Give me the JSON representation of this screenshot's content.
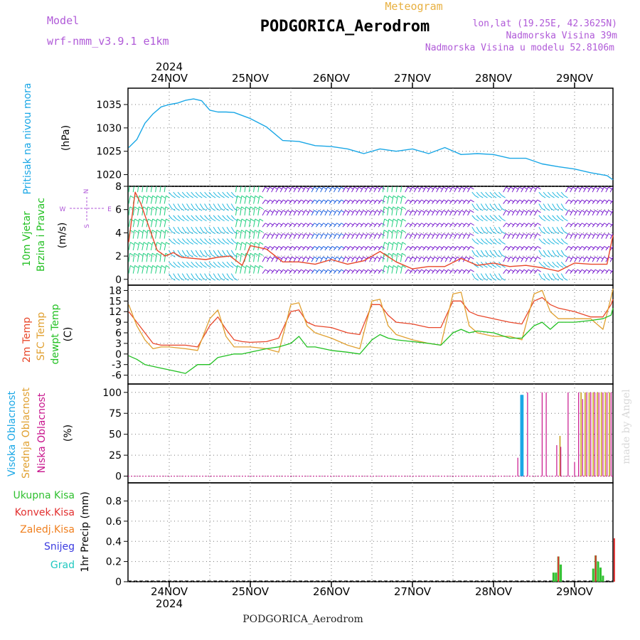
{
  "header": {
    "model_label": "Model",
    "model_name": "wrf-nmm_v3.9.1 e1km",
    "meteogram_label": "Meteogram",
    "station": "PODGORICA_Aerodrom",
    "lonlat": "lon,lat (19.25E, 42.3625N)",
    "elevation": "Nadmorska Visina 39m",
    "model_elevation": "Nadmorska Visina u modelu 52.8106m",
    "footer_station": "PODGORICA_Aerodrom",
    "watermark": "made by Angel"
  },
  "time_axis": {
    "year": "2024",
    "day_labels": [
      "24NOV",
      "25NOV",
      "26NOV",
      "27NOV",
      "28NOV",
      "29NOV"
    ]
  },
  "panels": {
    "pressure": {
      "title": "Pritisak na nivou mora",
      "unit": "(hPa)"
    },
    "wind": {
      "title_line1": "10m Vjetar",
      "title_line2": "Brzina i Pravac",
      "unit": "(m/s)",
      "compass_n": "N",
      "compass_s": "S",
      "compass_e": "E",
      "compass_w": "W"
    },
    "temp": {
      "label_2m": "2m Temp",
      "label_sfc": "SFC Temp",
      "label_dew": "dewpt Temp",
      "unit": "(C)"
    },
    "cloud": {
      "label_high": "Visoka Oblacnost",
      "label_mid": "Srednja Oblacnost",
      "label_low": "Niska Oblacnost",
      "unit": "(%)"
    },
    "precip": {
      "label_total": "Ukupna Kisa",
      "label_conv": "Konvek.Kisa",
      "label_frozen": "Zaledj.Kisa",
      "label_snow": "Snijeg",
      "label_grad": "Grad",
      "unit": "1hr Precip (mm)"
    }
  },
  "colors": {
    "pressure": "#1aa7e6",
    "wind_speed": "#e8472a",
    "temp_2m": "#e8472a",
    "temp_sfc": "#e0a030",
    "temp_dew": "#22c022",
    "cloud_high": "#1aa7e6",
    "cloud_mid": "#c8a020",
    "cloud_low": "#c8148c",
    "precip_total": "#30c030",
    "precip_conv": "#e23030",
    "precip_frozen": "#f08020",
    "precip_snow": "#3a3ae0",
    "precip_grad": "#20c8c0",
    "barb_purple": "#7a1ed0",
    "barb_blue": "#2060e0",
    "barb_cyan": "#20b8e0",
    "barb_green": "#20d080",
    "model_text": "#b05ad8",
    "orange_title": "#e8b040"
  },
  "chart_data": [
    {
      "type": "line",
      "name": "pressure",
      "x_unit": "days from 24NOV 00UTC",
      "x": [
        -0.5,
        -0.4,
        -0.3,
        -0.2,
        -0.1,
        0.0,
        0.1,
        0.2,
        0.3,
        0.4,
        0.5,
        0.6,
        0.7,
        0.8,
        1.0,
        1.2,
        1.4,
        1.6,
        1.8,
        2.0,
        2.2,
        2.4,
        2.6,
        2.8,
        3.0,
        3.2,
        3.4,
        3.6,
        3.8,
        4.0,
        4.2,
        4.4,
        4.6,
        4.8,
        5.0,
        5.2,
        5.4,
        5.5
      ],
      "values": [
        1025.8,
        1027.5,
        1031.0,
        1033.0,
        1034.5,
        1035.0,
        1035.3,
        1035.9,
        1036.2,
        1035.8,
        1033.8,
        1033.4,
        1033.4,
        1033.3,
        1032.0,
        1030.2,
        1027.3,
        1027.1,
        1026.2,
        1026.0,
        1025.5,
        1024.5,
        1025.5,
        1025.0,
        1025.5,
        1024.5,
        1025.8,
        1024.3,
        1024.5,
        1024.3,
        1023.5,
        1023.5,
        1022.3,
        1021.7,
        1021.2,
        1020.4,
        1019.8,
        1018.9
      ],
      "ylim": [
        1017.5,
        1038.5
      ],
      "yticks": [
        1020,
        1025,
        1030,
        1035
      ]
    },
    {
      "type": "line",
      "name": "wind_speed",
      "x": [
        -0.5,
        -0.42,
        -0.35,
        -0.25,
        -0.15,
        -0.05,
        0.05,
        0.15,
        0.3,
        0.45,
        0.6,
        0.75,
        0.9,
        1.0,
        1.2,
        1.4,
        1.6,
        1.8,
        2.0,
        2.2,
        2.4,
        2.6,
        2.8,
        3.0,
        3.2,
        3.4,
        3.6,
        3.8,
        4.0,
        4.2,
        4.4,
        4.6,
        4.8,
        5.0,
        5.2,
        5.4,
        5.5
      ],
      "values": [
        3.2,
        7.5,
        6.5,
        4.5,
        2.5,
        2.0,
        2.3,
        1.9,
        1.8,
        1.7,
        1.9,
        2.0,
        1.2,
        2.9,
        2.6,
        1.5,
        1.5,
        1.3,
        1.7,
        1.3,
        1.6,
        2.4,
        1.5,
        0.9,
        1.1,
        1.1,
        1.8,
        1.2,
        1.4,
        1.1,
        1.2,
        1.0,
        0.7,
        1.4,
        1.3,
        1.3,
        3.8
      ],
      "ylim": [
        -0.5,
        8
      ],
      "yticks": [
        0,
        2,
        4,
        6,
        8
      ]
    },
    {
      "type": "line",
      "name": "temperature",
      "x": [
        -0.5,
        -0.4,
        -0.3,
        -0.2,
        -0.1,
        0.0,
        0.2,
        0.35,
        0.5,
        0.6,
        0.7,
        0.8,
        0.9,
        1.0,
        1.2,
        1.35,
        1.5,
        1.6,
        1.7,
        1.8,
        2.0,
        2.2,
        2.35,
        2.5,
        2.6,
        2.7,
        2.8,
        3.0,
        3.2,
        3.35,
        3.5,
        3.6,
        3.7,
        3.8,
        4.0,
        4.2,
        4.35,
        4.5,
        4.6,
        4.7,
        4.8,
        5.0,
        5.2,
        5.35,
        5.45,
        5.5
      ],
      "series": [
        {
          "name": "2m Temp",
          "values": [
            12,
            9,
            6,
            3,
            2.5,
            2.5,
            2.5,
            2,
            8,
            10.5,
            7,
            4,
            3.5,
            3.3,
            3.5,
            4.5,
            12,
            12.5,
            9,
            8,
            7.5,
            6,
            5.5,
            14,
            14,
            11,
            9,
            8.5,
            7.5,
            7.5,
            15,
            15,
            12,
            11,
            10,
            9,
            8.5,
            15,
            16,
            14,
            13,
            12,
            10.5,
            10.5,
            14,
            15.5
          ]
        },
        {
          "name": "SFC Temp",
          "values": [
            14,
            8,
            4,
            1.5,
            2,
            2,
            1.5,
            1,
            10,
            12.5,
            5,
            2,
            2,
            2,
            1.5,
            0.5,
            14,
            14.5,
            8,
            6,
            4.5,
            2.5,
            1.5,
            15,
            15.5,
            8,
            5.5,
            4,
            3,
            2.5,
            17,
            17.5,
            8,
            6,
            5,
            5,
            4,
            17,
            18,
            12,
            10,
            10,
            10,
            7,
            16,
            18.5
          ]
        },
        {
          "name": "dewpt Temp",
          "values": [
            -0.5,
            -1.5,
            -3,
            -3.5,
            -4,
            -4.5,
            -5.5,
            -3,
            -3,
            -1,
            -0.5,
            0,
            0,
            0.5,
            1.5,
            2,
            3,
            5,
            2,
            2,
            1,
            0.5,
            0,
            4,
            5.5,
            4.5,
            4,
            3.5,
            3,
            2.5,
            6,
            7,
            6,
            6.5,
            6,
            4.5,
            4.5,
            8,
            9,
            7,
            9,
            9,
            9.5,
            10,
            11,
            13
          ]
        }
      ],
      "ylim": [
        -8.5,
        19.5
      ],
      "yticks": [
        -6,
        -3,
        0,
        3,
        6,
        9,
        12,
        15,
        18
      ]
    },
    {
      "type": "bar",
      "name": "cloud_cover",
      "ylim": [
        -8,
        110
      ],
      "yticks": [
        0,
        25,
        50,
        75,
        100
      ],
      "series": [
        {
          "name": "Visoka Oblacnost",
          "x": [
            4.34,
            4.35,
            4.36
          ],
          "values": [
            97,
            97,
            97
          ]
        },
        {
          "name": "Srednja Oblacnost",
          "x": [
            4.82,
            5.08,
            5.13,
            5.18,
            5.23,
            5.28,
            5.33,
            5.38,
            5.43
          ],
          "values": [
            48,
            100,
            100,
            100,
            100,
            100,
            100,
            100,
            100
          ]
        },
        {
          "name": "Niska Oblacnost",
          "x": [
            4.3,
            4.42,
            4.6,
            4.65,
            4.78,
            4.83,
            4.92,
            5.0,
            5.05,
            5.1,
            5.15,
            5.2,
            5.25,
            5.3,
            5.35,
            5.4,
            5.45
          ],
          "values": [
            22,
            100,
            100,
            100,
            37,
            35,
            100,
            17,
            100,
            92,
            100,
            100,
            100,
            100,
            100,
            100,
            100
          ]
        }
      ]
    },
    {
      "type": "bar",
      "name": "precipitation",
      "ylim": [
        0,
        0.98
      ],
      "yticks": [
        0,
        0.2,
        0.4,
        0.6,
        0.8
      ],
      "series": [
        {
          "name": "Ukupna Kisa",
          "x": [
            4.74,
            4.77,
            4.8,
            4.83,
            5.23,
            5.26,
            5.29,
            5.32,
            5.35
          ],
          "values": [
            0.09,
            0.09,
            0.25,
            0.17,
            0.13,
            0.26,
            0.2,
            0.14,
            0.06
          ]
        },
        {
          "name": "Konvek.Kisa",
          "x": [
            4.8,
            5.26,
            5.49
          ],
          "values": [
            0.25,
            0.26,
            0.43
          ]
        }
      ]
    }
  ]
}
